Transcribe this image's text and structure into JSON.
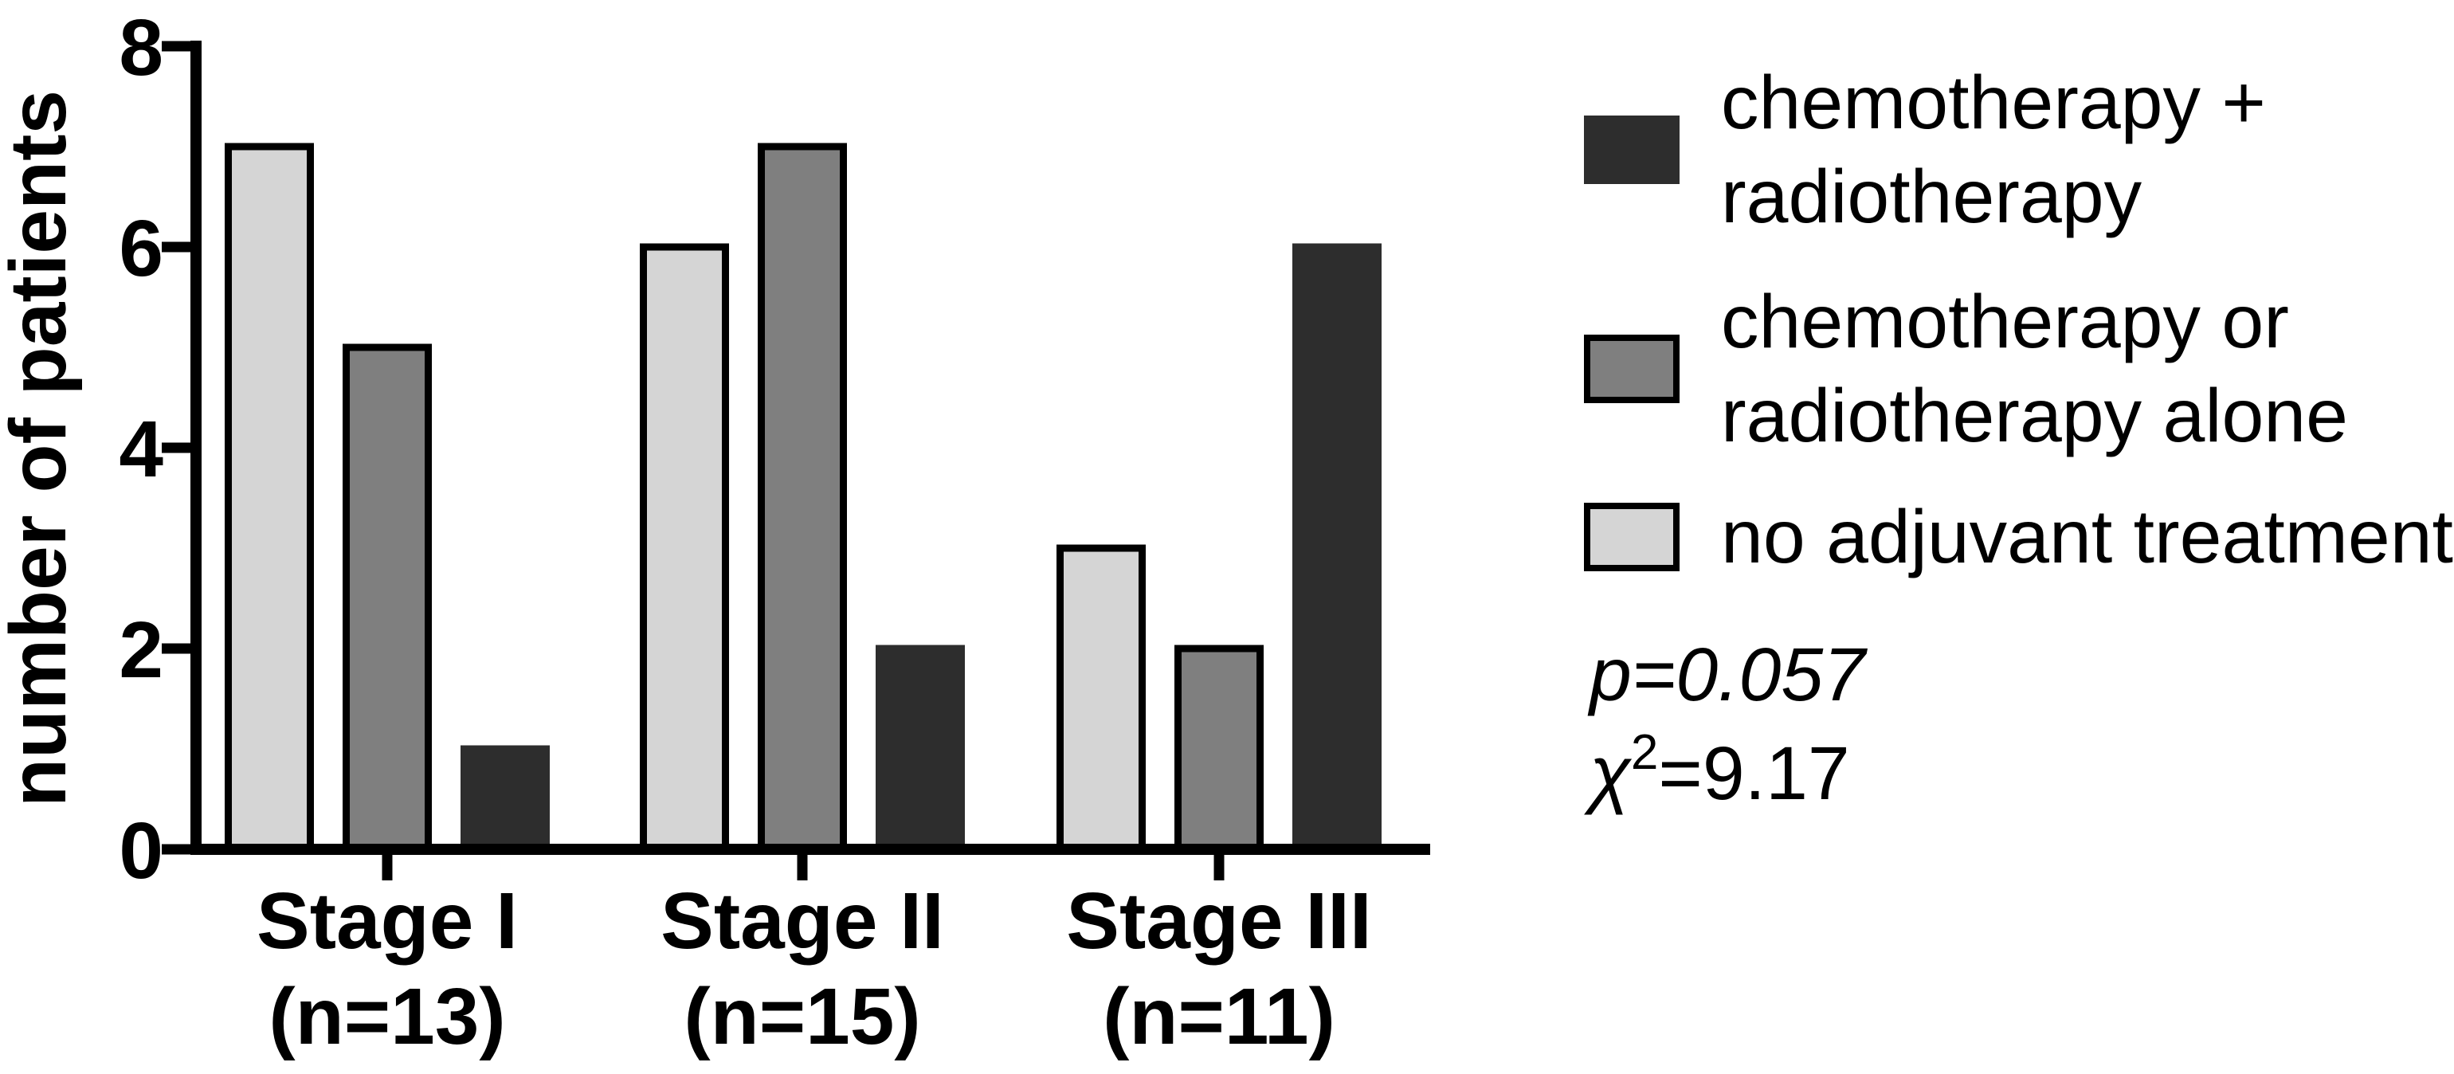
{
  "chart_data": {
    "type": "bar",
    "title": "",
    "xlabel": "",
    "ylabel": "number of patients",
    "ylim": [
      0,
      8
    ],
    "yticks": [
      0,
      2,
      4,
      6,
      8
    ],
    "grid": false,
    "legend_position": "right",
    "categories": [
      {
        "line1": "Stage I",
        "line2": "(n=13)"
      },
      {
        "line1": "Stage II",
        "line2": "(n=15)"
      },
      {
        "line1": "Stage III",
        "line2": "(n=11)"
      }
    ],
    "series": [
      {
        "name": "no adjuvant treatment",
        "color": "#d5d5d5",
        "border": "#000000",
        "values": [
          7,
          6,
          3
        ]
      },
      {
        "name": "chemotherapy or radiotherapy alone",
        "color": "#7f7f7f",
        "border": "#000000",
        "values": [
          5,
          7,
          2
        ]
      },
      {
        "name": "chemotherapy + radiotherapy",
        "color": "#2d2d2d",
        "border": "#2d2d2d",
        "values": [
          1,
          2,
          6
        ]
      }
    ],
    "legend": [
      {
        "lines": [
          "chemotherapy +",
          "radiotherapy"
        ],
        "color": "#2d2d2d",
        "border": "#2d2d2d"
      },
      {
        "lines": [
          "chemotherapy or",
          "radiotherapy alone"
        ],
        "color": "#7f7f7f",
        "border": "#000000"
      },
      {
        "lines": [
          "no adjuvant treatment"
        ],
        "color": "#d5d5d5",
        "border": "#000000"
      }
    ],
    "stats": {
      "p_line": "p=0.057",
      "chi_symbol": "χ",
      "chi_sup": "2",
      "chi_rest": "=9.17"
    }
  }
}
